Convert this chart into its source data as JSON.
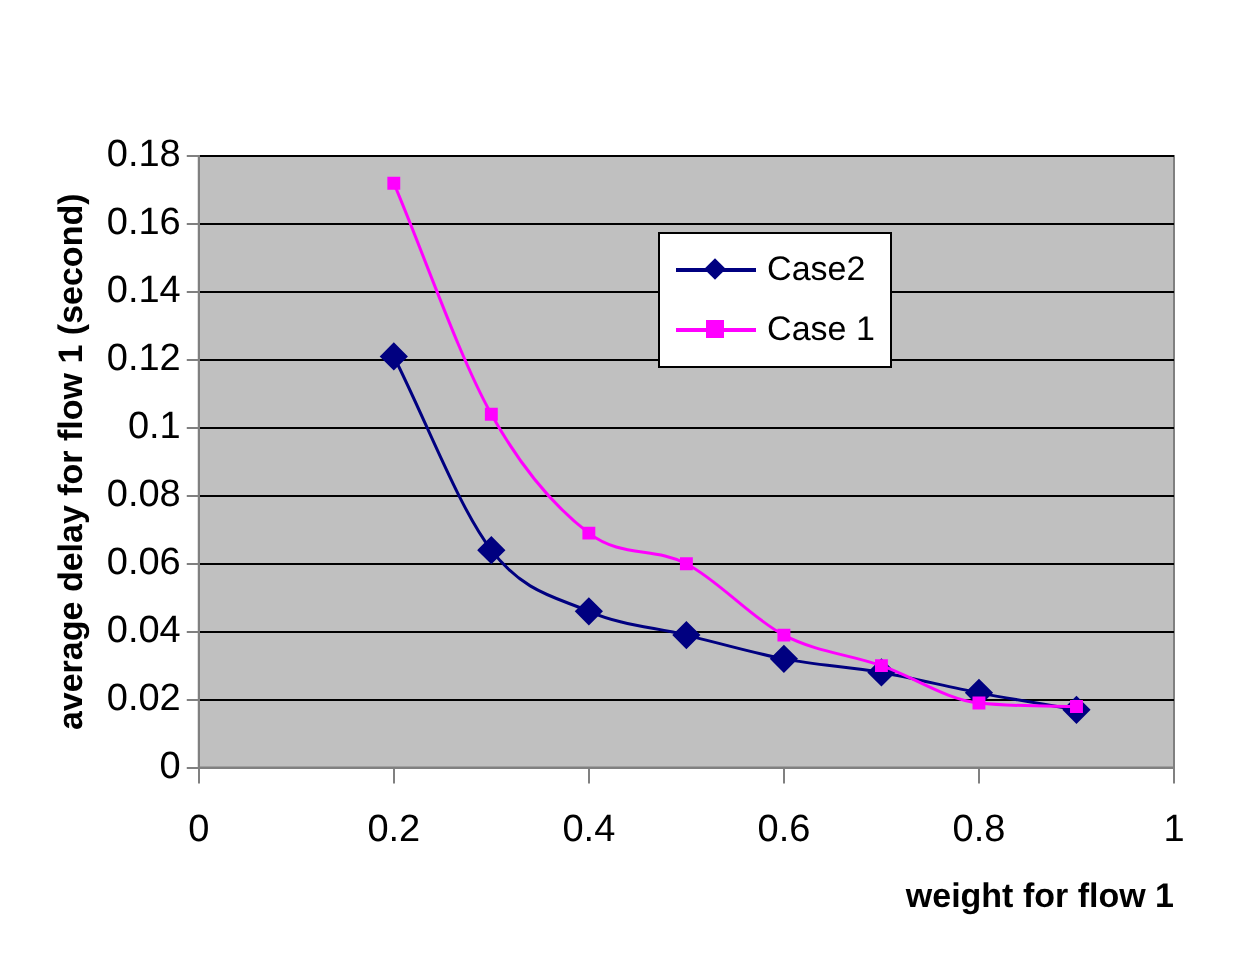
{
  "chart_data": {
    "type": "line",
    "xlabel": "weight for flow 1",
    "ylabel": "average delay for flow 1 (second)",
    "x": [
      0.2,
      0.3,
      0.4,
      0.5,
      0.6,
      0.7,
      0.8,
      0.9
    ],
    "series": [
      {
        "name": "Case2",
        "color": "#000080",
        "marker": "diamond",
        "values": [
          0.121,
          0.064,
          0.046,
          0.039,
          0.032,
          0.028,
          0.022,
          0.017
        ]
      },
      {
        "name": "Case 1",
        "color": "#ff00ff",
        "marker": "square",
        "values": [
          0.172,
          0.104,
          0.069,
          0.06,
          0.039,
          0.03,
          0.019,
          0.018
        ]
      }
    ],
    "xlim": [
      0,
      1
    ],
    "xticks": [
      0,
      0.2,
      0.4,
      0.6,
      0.8,
      1
    ],
    "ylim": [
      0,
      0.18
    ],
    "yticks": [
      0,
      0.02,
      0.04,
      0.06,
      0.08,
      0.1,
      0.12,
      0.14,
      0.16,
      0.18
    ],
    "grid": "y",
    "legend": "top right",
    "line_style": "solid"
  }
}
